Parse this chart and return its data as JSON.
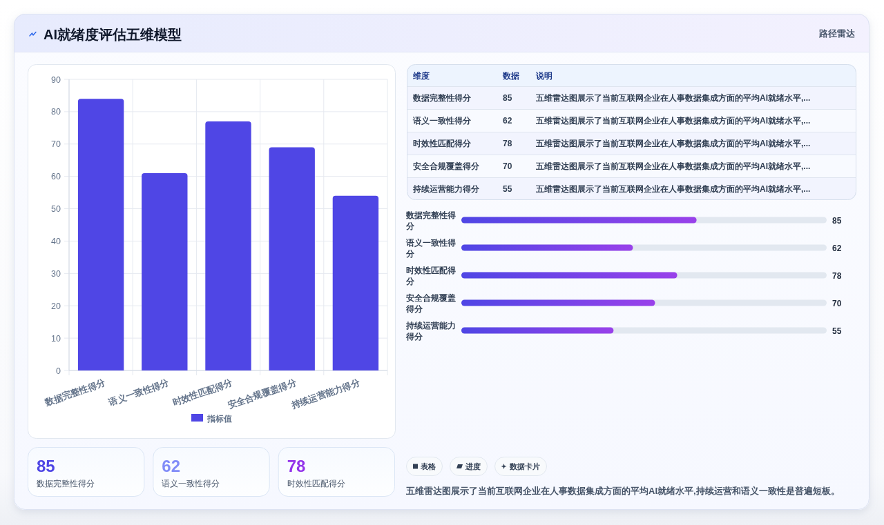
{
  "chart_data": [
    {
      "type": "other",
      "title": "AI就绪度评估五维模型",
      "annotations": [
        "路径雷达"
      ]
    },
    {
      "type": "bar",
      "categories": [
        "数据完整性得分",
        "语义一致性得分",
        "时效性匹配得分",
        "安全合规覆盖得分",
        "持续运营能力得分"
      ],
      "series": [
        {
          "name": "指标值",
          "color": "#4f46e5",
          "values": [
            84,
            61,
            77,
            69,
            54
          ]
        }
      ],
      "ylim": [
        0,
        90
      ],
      "yticks": [
        0,
        10,
        20,
        30,
        40,
        50,
        60,
        70,
        80,
        90
      ],
      "grid": true,
      "legend": "bottom"
    },
    {
      "type": "other",
      "categories": [
        "数据完整性得分",
        "语义一致性得分",
        "时效性匹配得分",
        "安全合规覆盖得分",
        "持续运营能力得分"
      ],
      "values": [
        85,
        62,
        78,
        70,
        55
      ],
      "data_labels": true,
      "annotations": [
        "维度",
        "数据",
        "说明",
        "五维雷达图展示了当前互联网企业在人事数据集成方面的平均AI就绪水平,...",
        "五维雷达图展示了当前互联网企业在人事数据集成方面的平均AI就绪水平,...",
        "五维雷达图展示了当前互联网企业在人事数据集成方面的平均AI就绪水平,...",
        "五维雷达图展示了当前互联网企业在人事数据集成方面的平均AI就绪水平,...",
        "五维雷达图展示了当前互联网企业在人事数据集成方面的平均AI就绪水平,..."
      ]
    },
    {
      "type": "bar",
      "orientation": "horizontal",
      "categories": [
        "数据完整性得分",
        "语义一致性得分",
        "时效性匹配得分",
        "安全合规覆盖得分",
        "持续运营能力得分"
      ],
      "series": [
        {
          "color": "#4f46e5",
          "values": [
            85,
            62,
            78,
            70,
            55
          ]
        }
      ],
      "xlim": [
        0,
        132
      ],
      "data_labels": true,
      "tick_labels": "y"
    },
    {
      "type": "other",
      "categories": [
        "数据完整性得分",
        "语义一致性得分",
        "时效性匹配得分"
      ],
      "values": [
        85,
        62,
        78
      ],
      "data_labels": true
    },
    {
      "type": "other",
      "annotations": [
        "表格",
        "进度",
        "数据卡片",
        "五维雷达图展示了当前互联网企业在人事数据集成方面的平均AI就绪水平,持续运营和语义一致性是普遍短板。"
      ]
    }
  ]
}
